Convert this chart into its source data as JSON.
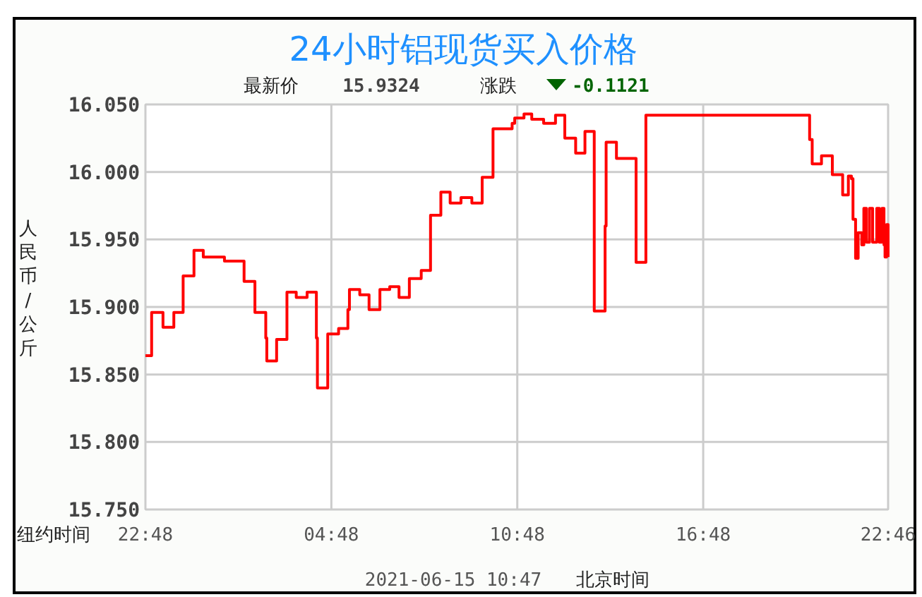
{
  "chart_data": {
    "type": "step",
    "title": "24小时铝现货买入价格",
    "ylabel": "人民币/公斤",
    "annotations": [
      "最新价",
      "15.9324",
      "涨跌",
      "-0.1121",
      "纽约时间",
      "2021-06-15 10:47",
      "北京时间"
    ],
    "xlim": [
      "2021-06-13T22:48",
      "2021-06-14T22:46"
    ],
    "xticks": [
      {
        "value": "2021-06-13T22:48",
        "label": "22:48"
      },
      {
        "value": "2021-06-14T04:48",
        "label": "04:48"
      },
      {
        "value": "2021-06-14T10:48",
        "label": "10:48"
      },
      {
        "value": "2021-06-14T16:48",
        "label": "16:48"
      },
      {
        "value": "2021-06-14T22:46",
        "label": "22:46"
      }
    ],
    "ylim": [
      15.75,
      16.05
    ],
    "yticks": [
      {
        "value": 15.75,
        "label": "15.750"
      },
      {
        "value": 15.8,
        "label": "15.800"
      },
      {
        "value": 15.85,
        "label": "15.850"
      },
      {
        "value": 15.9,
        "label": "15.900"
      },
      {
        "value": 15.95,
        "label": "15.950"
      },
      {
        "value": 16.0,
        "label": "16.000"
      },
      {
        "value": 16.05,
        "label": "16.050"
      }
    ],
    "grid": true,
    "line_style": "solid",
    "series": [
      {
        "color": "#ff0000",
        "x": [
          "2021-06-13T22:48",
          "2021-06-13T23:00",
          "2021-06-13T23:22",
          "2021-06-13T23:43",
          "2021-06-14T00:01",
          "2021-06-14T00:22",
          "2021-06-14T00:40",
          "2021-06-14T01:21",
          "2021-06-14T01:59",
          "2021-06-14T02:20",
          "2021-06-14T02:41",
          "2021-06-14T02:43",
          "2021-06-14T03:02",
          "2021-06-14T03:22",
          "2021-06-14T03:40",
          "2021-06-14T04:01",
          "2021-06-14T04:19",
          "2021-06-14T04:21",
          "2021-06-14T04:41",
          "2021-06-14T05:02",
          "2021-06-14T05:20",
          "2021-06-14T05:23",
          "2021-06-14T05:43",
          "2021-06-14T06:01",
          "2021-06-14T06:22",
          "2021-06-14T06:41",
          "2021-06-14T06:59",
          "2021-06-14T07:19",
          "2021-06-14T07:42",
          "2021-06-14T08:00",
          "2021-06-14T08:20",
          "2021-06-14T08:38",
          "2021-06-14T08:59",
          "2021-06-14T09:20",
          "2021-06-14T09:40",
          "2021-06-14T10:01",
          "2021-06-14T10:38",
          "2021-06-14T10:43",
          "2021-06-14T11:01",
          "2021-06-14T11:16",
          "2021-06-14T11:39",
          "2021-06-14T12:02",
          "2021-06-14T12:20",
          "2021-06-14T12:41",
          "2021-06-14T12:59",
          "2021-06-14T13:17",
          "2021-06-14T13:38",
          "2021-06-14T13:40",
          "2021-06-14T14:00",
          "2021-06-14T14:38",
          "2021-06-14T14:57",
          "2021-06-14T20:14",
          "2021-06-14T20:19",
          "2021-06-14T20:37",
          "2021-06-14T20:58",
          "2021-06-14T21:18",
          "2021-06-14T21:29",
          "2021-06-14T21:35",
          "2021-06-14T21:38",
          "2021-06-14T21:43",
          "2021-06-14T21:48",
          "2021-06-14T21:55",
          "2021-06-14T21:59",
          "2021-06-14T22:04",
          "2021-06-14T22:10",
          "2021-06-14T22:16",
          "2021-06-14T22:24",
          "2021-06-14T22:29",
          "2021-06-14T22:34",
          "2021-06-14T22:38",
          "2021-06-14T22:40",
          "2021-06-14T22:43",
          "2021-06-14T22:46"
        ],
        "values": [
          15.864,
          15.896,
          15.885,
          15.896,
          15.923,
          15.942,
          15.937,
          15.934,
          15.919,
          15.896,
          15.877,
          15.86,
          15.876,
          15.911,
          15.907,
          15.911,
          15.877,
          15.84,
          15.88,
          15.884,
          15.898,
          15.913,
          15.909,
          15.898,
          15.913,
          15.915,
          15.907,
          15.921,
          15.927,
          15.968,
          15.985,
          15.977,
          15.981,
          15.977,
          15.996,
          16.032,
          16.036,
          16.04,
          16.043,
          16.039,
          16.036,
          16.042,
          16.025,
          16.014,
          16.03,
          15.897,
          15.96,
          16.022,
          16.01,
          15.933,
          16.042,
          16.024,
          16.006,
          16.012,
          15.998,
          15.983,
          15.997,
          15.995,
          15.965,
          15.936,
          15.955,
          15.946,
          15.973,
          15.948,
          15.973,
          15.948,
          15.973,
          15.948,
          15.973,
          15.946,
          15.937,
          15.961,
          15.937
        ]
      }
    ]
  }
}
